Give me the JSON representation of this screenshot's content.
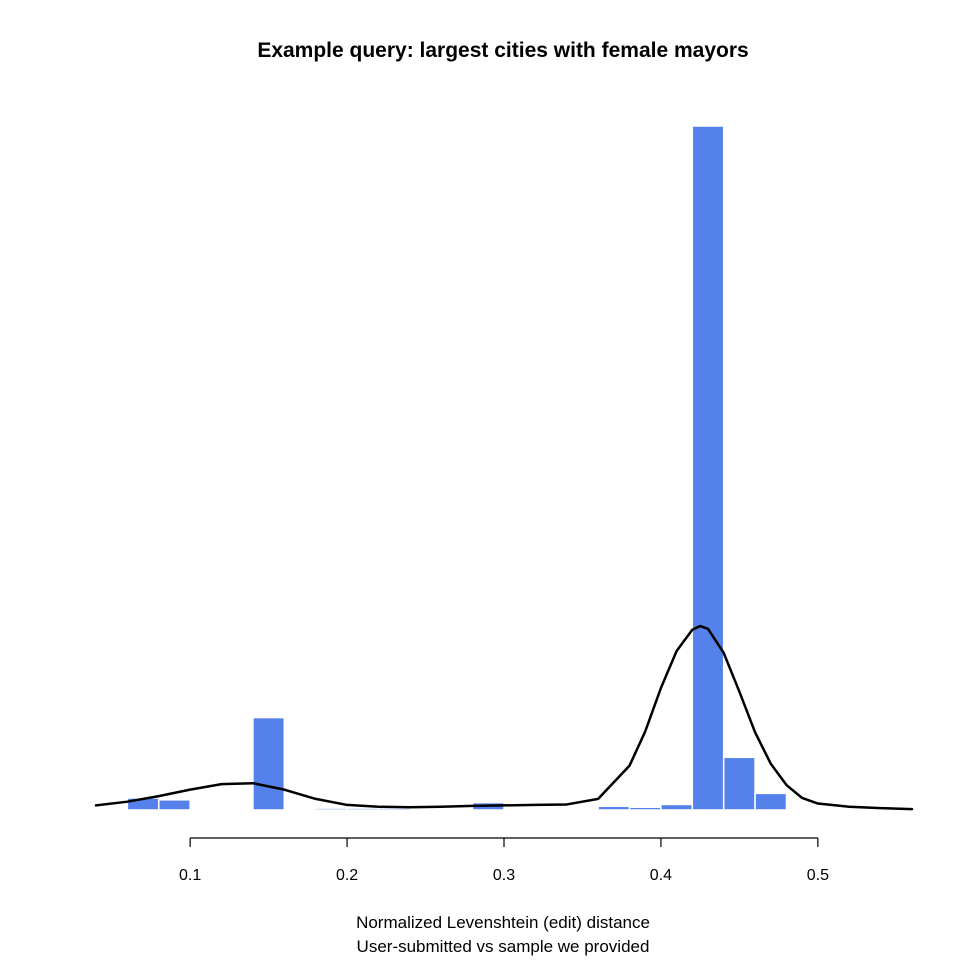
{
  "chart_data": {
    "type": "bar",
    "title": "Example query: largest cities with female mayors",
    "xlabel": "Normalized Levenshtein (edit) distance",
    "xlabel_line2": "User-submitted vs sample we provided",
    "ylabel": "",
    "xlim": [
      0.04,
      0.56
    ],
    "x_ticks": [
      0.1,
      0.2,
      0.3,
      0.4,
      0.5
    ],
    "x_tick_labels": [
      "0.1",
      "0.2",
      "0.3",
      "0.4",
      "0.5"
    ],
    "y_axis_shown": false,
    "ylim": [
      0,
      74
    ],
    "bin_width": 0.02,
    "histogram": [
      {
        "bin": [
          0.06,
          0.08
        ],
        "value": 1.3
      },
      {
        "bin": [
          0.08,
          0.1
        ],
        "value": 1.1
      },
      {
        "bin": [
          0.14,
          0.16
        ],
        "value": 10.0
      },
      {
        "bin": [
          0.18,
          0.2
        ],
        "value": 0.2
      },
      {
        "bin": [
          0.2,
          0.22
        ],
        "value": 0.2
      },
      {
        "bin": [
          0.22,
          0.24
        ],
        "value": 0.2
      },
      {
        "bin": [
          0.28,
          0.3
        ],
        "value": 0.8
      },
      {
        "bin": [
          0.36,
          0.38
        ],
        "value": 0.4
      },
      {
        "bin": [
          0.38,
          0.4
        ],
        "value": 0.3
      },
      {
        "bin": [
          0.4,
          0.42
        ],
        "value": 0.6
      },
      {
        "bin": [
          0.42,
          0.44
        ],
        "value": 74.0
      },
      {
        "bin": [
          0.44,
          0.46
        ],
        "value": 5.7
      },
      {
        "bin": [
          0.46,
          0.48
        ],
        "value": 1.8
      },
      {
        "bin": [
          0.52,
          0.54
        ],
        "value": 0.15
      }
    ],
    "density_curve": {
      "x": [
        0.04,
        0.06,
        0.08,
        0.1,
        0.12,
        0.14,
        0.16,
        0.18,
        0.2,
        0.22,
        0.24,
        0.26,
        0.28,
        0.3,
        0.32,
        0.34,
        0.36,
        0.38,
        0.39,
        0.4,
        0.41,
        0.42,
        0.425,
        0.43,
        0.44,
        0.45,
        0.46,
        0.47,
        0.48,
        0.49,
        0.5,
        0.52,
        0.54,
        0.56
      ],
      "y": [
        0.5,
        0.9,
        1.5,
        2.2,
        2.8,
        2.9,
        2.2,
        1.2,
        0.55,
        0.35,
        0.3,
        0.35,
        0.45,
        0.5,
        0.55,
        0.6,
        1.2,
        4.8,
        8.5,
        13.2,
        17.2,
        19.5,
        19.9,
        19.6,
        17.0,
        12.8,
        8.4,
        5.0,
        2.7,
        1.3,
        0.7,
        0.35,
        0.2,
        0.1
      ]
    },
    "colors": {
      "bar_fill": "#5581ea",
      "bar_edge": "#ffffff",
      "curve": "#000000"
    },
    "grid": false,
    "legend": "none"
  }
}
